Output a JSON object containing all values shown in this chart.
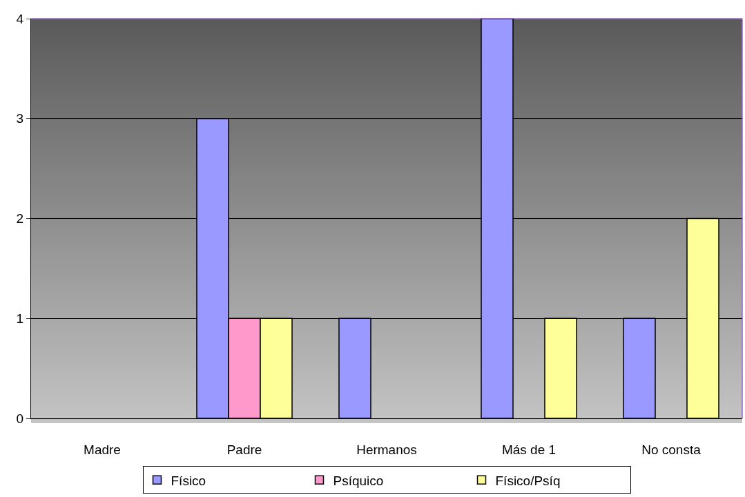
{
  "chart_data": {
    "type": "bar",
    "categories": [
      "Madre",
      "Padre",
      "Hermanos",
      "Más de 1",
      "No consta"
    ],
    "series": [
      {
        "name": "Físico",
        "color": "#9999ff",
        "values": [
          null,
          3,
          1,
          4,
          1
        ]
      },
      {
        "name": "Psíquico",
        "color": "#ff99cc",
        "values": [
          null,
          1,
          null,
          null,
          null
        ]
      },
      {
        "name": "Físico/Psíq",
        "color": "#ffff99",
        "values": [
          null,
          1,
          null,
          1,
          2
        ]
      }
    ],
    "ylim": [
      0,
      4
    ],
    "yticks": [
      0,
      1,
      2,
      3,
      4
    ],
    "grid": "y",
    "legend": "bottom"
  }
}
